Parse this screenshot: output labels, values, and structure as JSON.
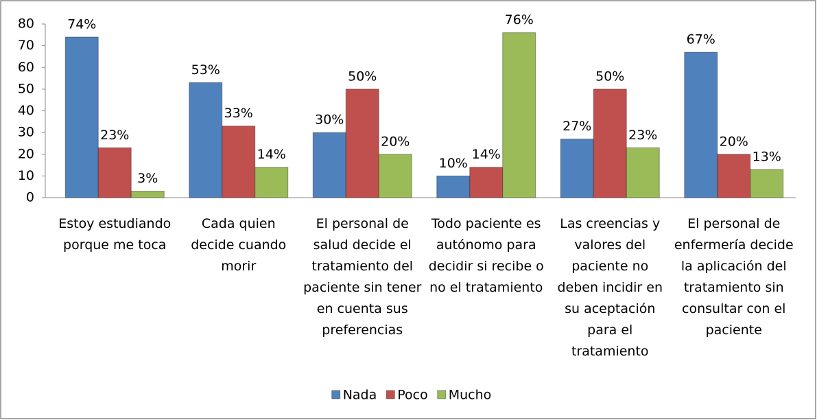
{
  "chart_data": {
    "type": "bar",
    "categories": [
      "Estoy estudiando porque me toca",
      "Cada quien decide cuando morir",
      "El personal de salud decide el tratamiento del paciente sin tener en cuenta sus preferencias",
      "Todo paciente es autónomo para decidir si recibe o no el tratamiento",
      "Las creencias y valores del paciente no deben incidir en su aceptación para el tratamiento",
      "El personal de enfermería decide la aplicación del tratamiento sin consultar con el paciente"
    ],
    "series": [
      {
        "name": "Nada",
        "color": "#4f81bd",
        "values": [
          74,
          53,
          30,
          10,
          27,
          67
        ],
        "value_labels": [
          "74%",
          "53%",
          "30%",
          "10%",
          "27%",
          "67%"
        ]
      },
      {
        "name": "Poco",
        "color": "#c0504d",
        "values": [
          23,
          33,
          50,
          14,
          50,
          20
        ],
        "value_labels": [
          "23%",
          "33%",
          "50%",
          "14%",
          "50%",
          "20%"
        ]
      },
      {
        "name": "Mucho",
        "color": "#9bbb59",
        "values": [
          3,
          14,
          20,
          76,
          23,
          13
        ],
        "value_labels": [
          "3%",
          "14%",
          "20%",
          "76%",
          "23%",
          "13%"
        ]
      }
    ],
    "ylim": [
      0,
      80
    ],
    "yticks": [
      0,
      10,
      20,
      30,
      40,
      50,
      60,
      70,
      80
    ],
    "grid": false,
    "legend": "bottom"
  }
}
